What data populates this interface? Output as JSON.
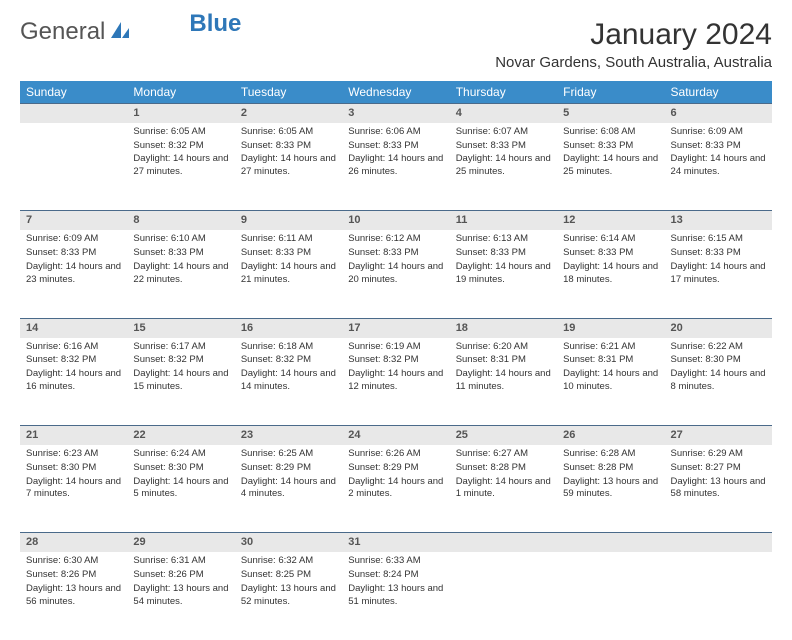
{
  "logo": {
    "text1": "General",
    "text2": "Blue"
  },
  "title": "January 2024",
  "location": "Novar Gardens, South Australia, Australia",
  "colors": {
    "header_bg": "#3a8cc9",
    "header_text": "#ffffff",
    "daynum_bg": "#e8e8e8",
    "daynum_border": "#4a6a8a",
    "text": "#333333"
  },
  "day_headers": [
    "Sunday",
    "Monday",
    "Tuesday",
    "Wednesday",
    "Thursday",
    "Friday",
    "Saturday"
  ],
  "weeks": [
    [
      null,
      {
        "n": "1",
        "sr": "Sunrise: 6:05 AM",
        "ss": "Sunset: 8:32 PM",
        "dl": "Daylight: 14 hours and 27 minutes."
      },
      {
        "n": "2",
        "sr": "Sunrise: 6:05 AM",
        "ss": "Sunset: 8:33 PM",
        "dl": "Daylight: 14 hours and 27 minutes."
      },
      {
        "n": "3",
        "sr": "Sunrise: 6:06 AM",
        "ss": "Sunset: 8:33 PM",
        "dl": "Daylight: 14 hours and 26 minutes."
      },
      {
        "n": "4",
        "sr": "Sunrise: 6:07 AM",
        "ss": "Sunset: 8:33 PM",
        "dl": "Daylight: 14 hours and 25 minutes."
      },
      {
        "n": "5",
        "sr": "Sunrise: 6:08 AM",
        "ss": "Sunset: 8:33 PM",
        "dl": "Daylight: 14 hours and 25 minutes."
      },
      {
        "n": "6",
        "sr": "Sunrise: 6:09 AM",
        "ss": "Sunset: 8:33 PM",
        "dl": "Daylight: 14 hours and 24 minutes."
      }
    ],
    [
      {
        "n": "7",
        "sr": "Sunrise: 6:09 AM",
        "ss": "Sunset: 8:33 PM",
        "dl": "Daylight: 14 hours and 23 minutes."
      },
      {
        "n": "8",
        "sr": "Sunrise: 6:10 AM",
        "ss": "Sunset: 8:33 PM",
        "dl": "Daylight: 14 hours and 22 minutes."
      },
      {
        "n": "9",
        "sr": "Sunrise: 6:11 AM",
        "ss": "Sunset: 8:33 PM",
        "dl": "Daylight: 14 hours and 21 minutes."
      },
      {
        "n": "10",
        "sr": "Sunrise: 6:12 AM",
        "ss": "Sunset: 8:33 PM",
        "dl": "Daylight: 14 hours and 20 minutes."
      },
      {
        "n": "11",
        "sr": "Sunrise: 6:13 AM",
        "ss": "Sunset: 8:33 PM",
        "dl": "Daylight: 14 hours and 19 minutes."
      },
      {
        "n": "12",
        "sr": "Sunrise: 6:14 AM",
        "ss": "Sunset: 8:33 PM",
        "dl": "Daylight: 14 hours and 18 minutes."
      },
      {
        "n": "13",
        "sr": "Sunrise: 6:15 AM",
        "ss": "Sunset: 8:33 PM",
        "dl": "Daylight: 14 hours and 17 minutes."
      }
    ],
    [
      {
        "n": "14",
        "sr": "Sunrise: 6:16 AM",
        "ss": "Sunset: 8:32 PM",
        "dl": "Daylight: 14 hours and 16 minutes."
      },
      {
        "n": "15",
        "sr": "Sunrise: 6:17 AM",
        "ss": "Sunset: 8:32 PM",
        "dl": "Daylight: 14 hours and 15 minutes."
      },
      {
        "n": "16",
        "sr": "Sunrise: 6:18 AM",
        "ss": "Sunset: 8:32 PM",
        "dl": "Daylight: 14 hours and 14 minutes."
      },
      {
        "n": "17",
        "sr": "Sunrise: 6:19 AM",
        "ss": "Sunset: 8:32 PM",
        "dl": "Daylight: 14 hours and 12 minutes."
      },
      {
        "n": "18",
        "sr": "Sunrise: 6:20 AM",
        "ss": "Sunset: 8:31 PM",
        "dl": "Daylight: 14 hours and 11 minutes."
      },
      {
        "n": "19",
        "sr": "Sunrise: 6:21 AM",
        "ss": "Sunset: 8:31 PM",
        "dl": "Daylight: 14 hours and 10 minutes."
      },
      {
        "n": "20",
        "sr": "Sunrise: 6:22 AM",
        "ss": "Sunset: 8:30 PM",
        "dl": "Daylight: 14 hours and 8 minutes."
      }
    ],
    [
      {
        "n": "21",
        "sr": "Sunrise: 6:23 AM",
        "ss": "Sunset: 8:30 PM",
        "dl": "Daylight: 14 hours and 7 minutes."
      },
      {
        "n": "22",
        "sr": "Sunrise: 6:24 AM",
        "ss": "Sunset: 8:30 PM",
        "dl": "Daylight: 14 hours and 5 minutes."
      },
      {
        "n": "23",
        "sr": "Sunrise: 6:25 AM",
        "ss": "Sunset: 8:29 PM",
        "dl": "Daylight: 14 hours and 4 minutes."
      },
      {
        "n": "24",
        "sr": "Sunrise: 6:26 AM",
        "ss": "Sunset: 8:29 PM",
        "dl": "Daylight: 14 hours and 2 minutes."
      },
      {
        "n": "25",
        "sr": "Sunrise: 6:27 AM",
        "ss": "Sunset: 8:28 PM",
        "dl": "Daylight: 14 hours and 1 minute."
      },
      {
        "n": "26",
        "sr": "Sunrise: 6:28 AM",
        "ss": "Sunset: 8:28 PM",
        "dl": "Daylight: 13 hours and 59 minutes."
      },
      {
        "n": "27",
        "sr": "Sunrise: 6:29 AM",
        "ss": "Sunset: 8:27 PM",
        "dl": "Daylight: 13 hours and 58 minutes."
      }
    ],
    [
      {
        "n": "28",
        "sr": "Sunrise: 6:30 AM",
        "ss": "Sunset: 8:26 PM",
        "dl": "Daylight: 13 hours and 56 minutes."
      },
      {
        "n": "29",
        "sr": "Sunrise: 6:31 AM",
        "ss": "Sunset: 8:26 PM",
        "dl": "Daylight: 13 hours and 54 minutes."
      },
      {
        "n": "30",
        "sr": "Sunrise: 6:32 AM",
        "ss": "Sunset: 8:25 PM",
        "dl": "Daylight: 13 hours and 52 minutes."
      },
      {
        "n": "31",
        "sr": "Sunrise: 6:33 AM",
        "ss": "Sunset: 8:24 PM",
        "dl": "Daylight: 13 hours and 51 minutes."
      },
      null,
      null,
      null
    ]
  ]
}
